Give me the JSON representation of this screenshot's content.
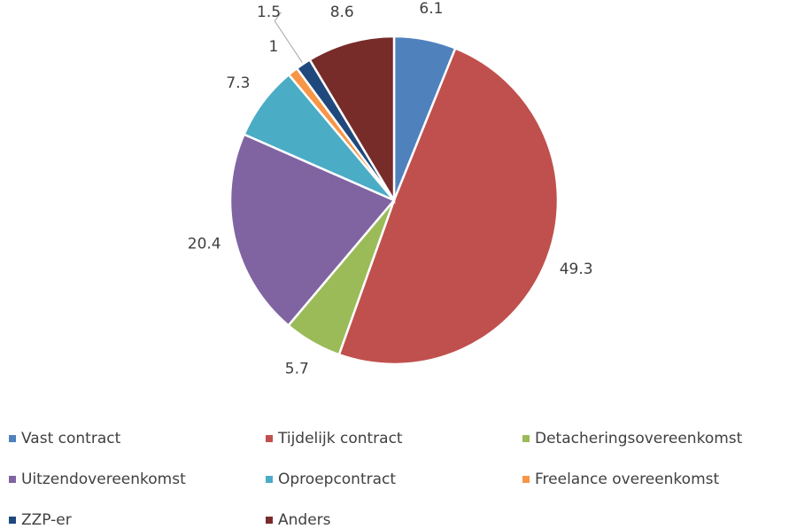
{
  "chart_data": {
    "type": "pie",
    "categories": [
      "Vast contract",
      "Tijdelijk contract",
      "Detacheringsovereenkomst",
      "Uitzendovereenkomst",
      "Oproepcontract",
      "Freelance overeenkomst",
      "ZZP-er",
      "Anders"
    ],
    "values": [
      6.1,
      49.3,
      5.7,
      20.4,
      7.3,
      1,
      1.5,
      8.6
    ],
    "colors": [
      "#4f81bd",
      "#c0504d",
      "#9bbb59",
      "#8064a2",
      "#4bacc6",
      "#f79646",
      "#1f497d",
      "#772c2a"
    ],
    "legend": "bottom"
  }
}
